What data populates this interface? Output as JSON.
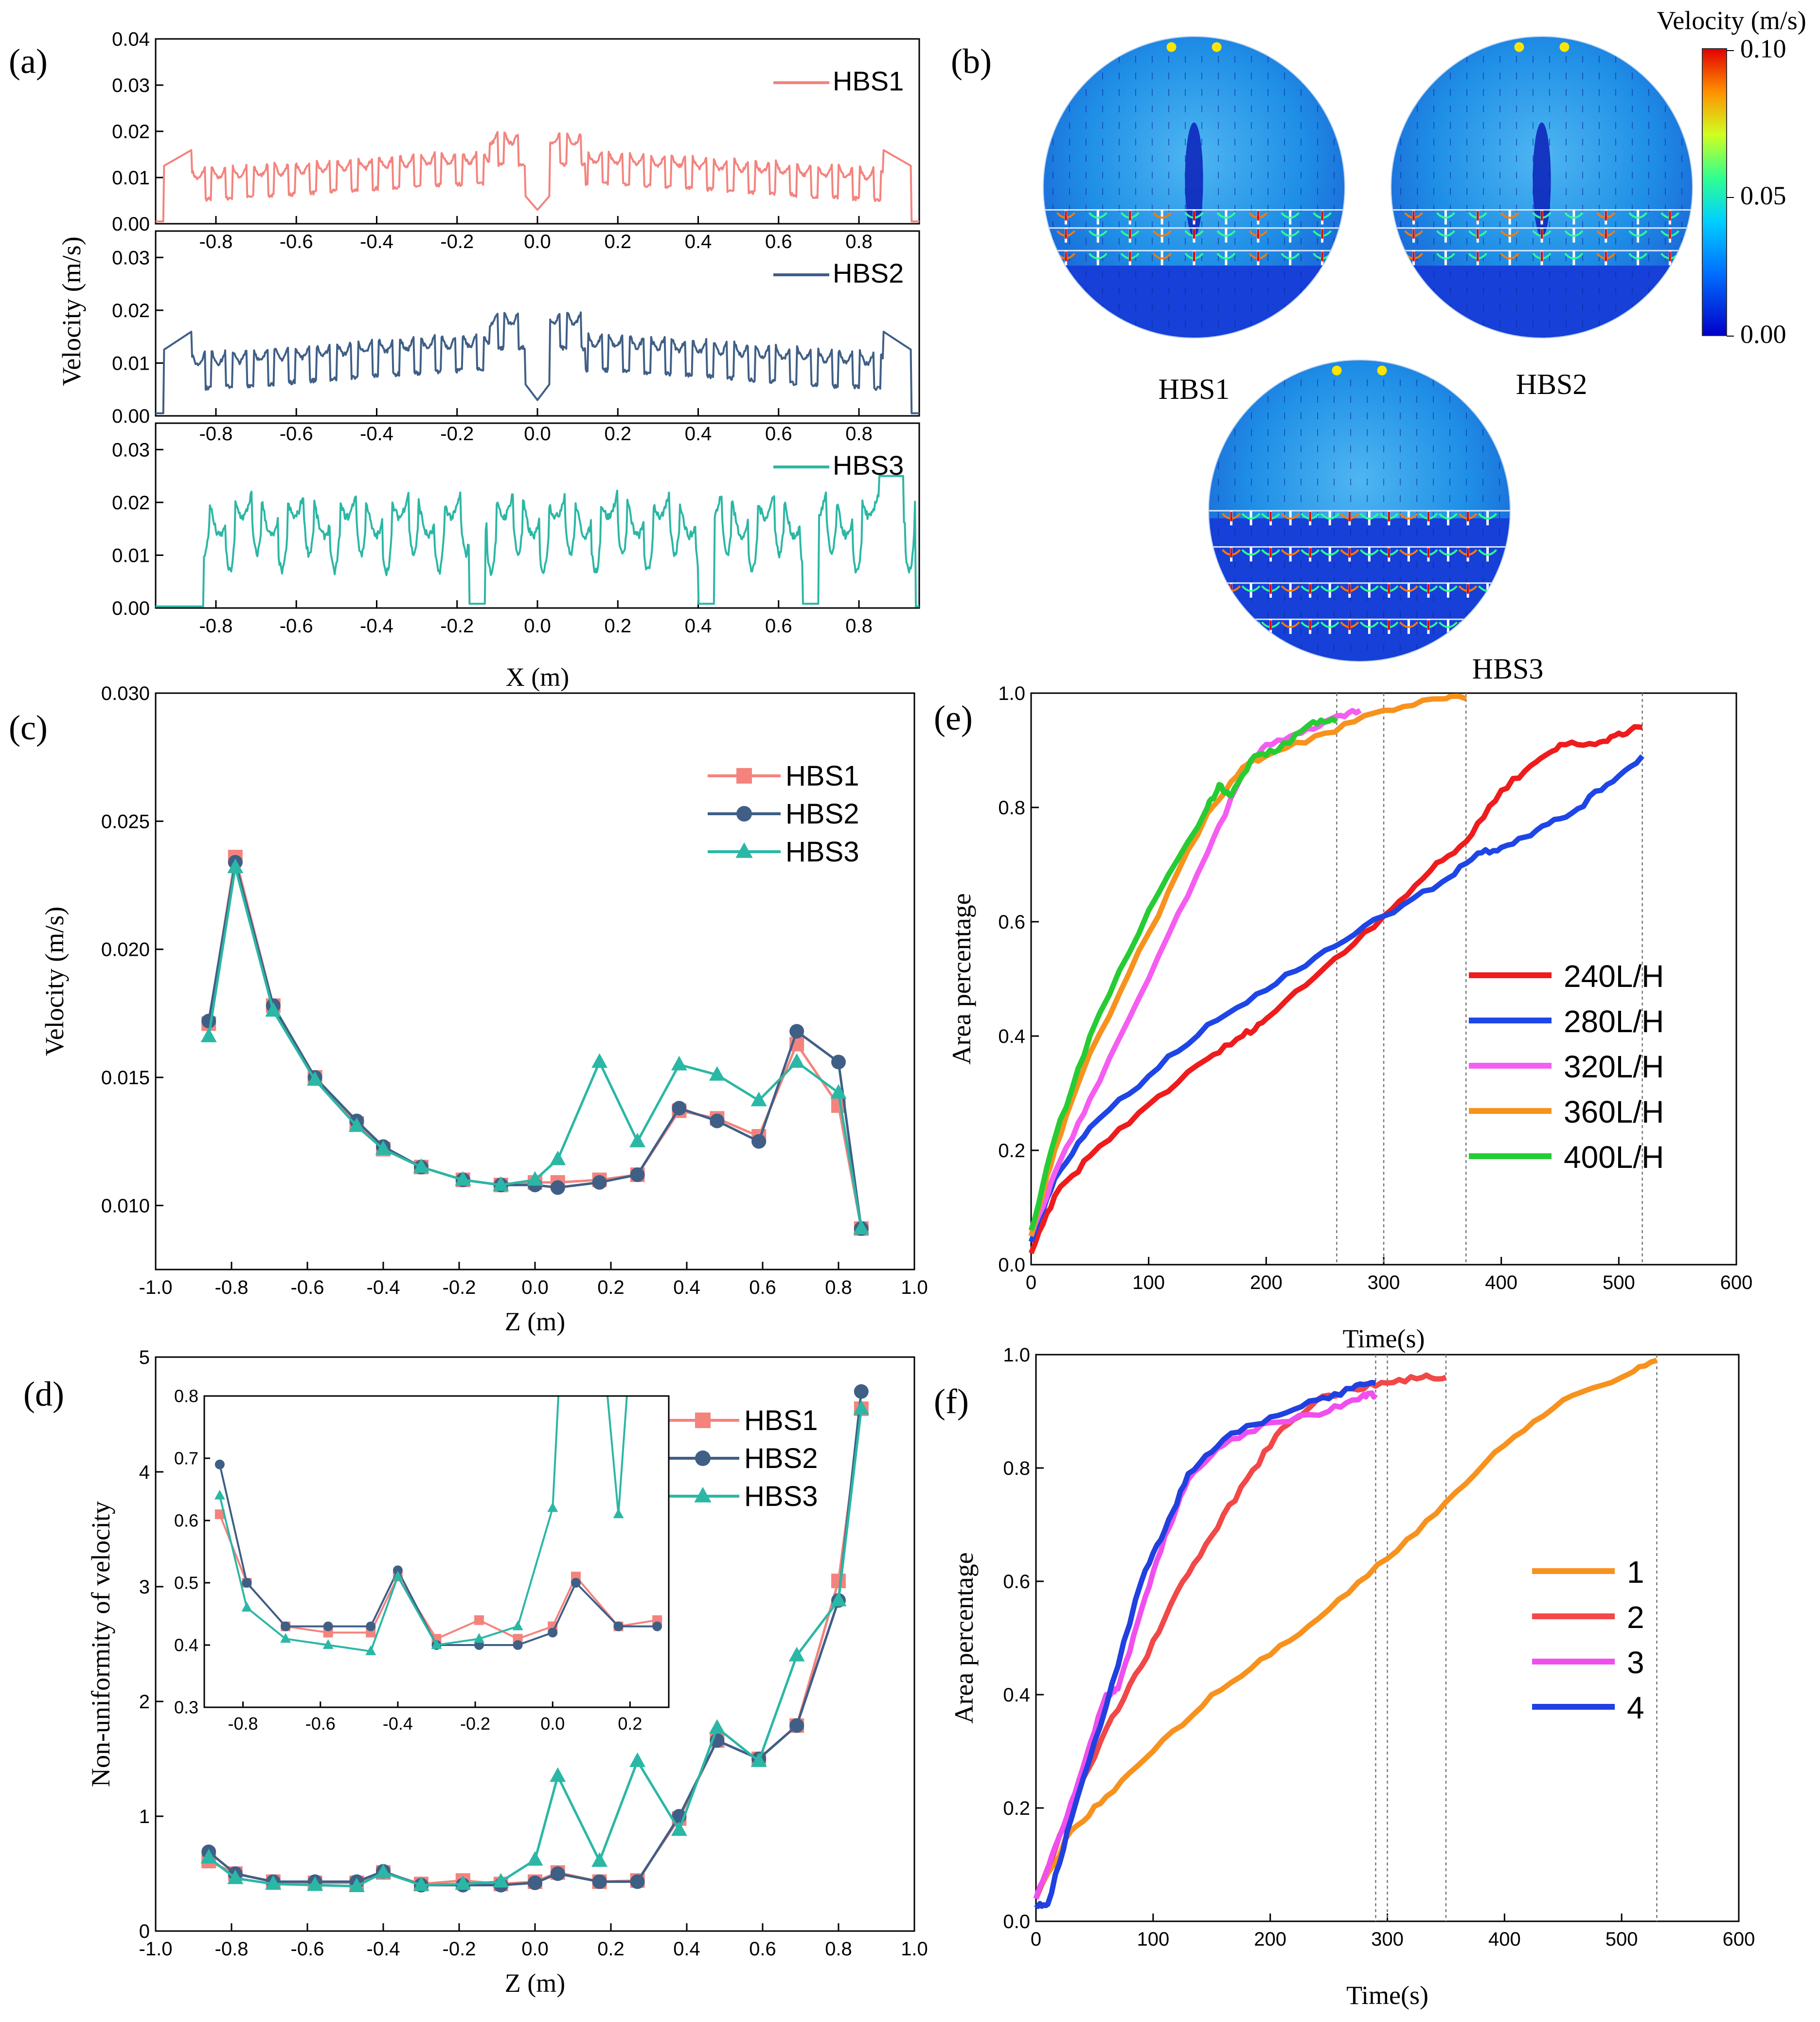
{
  "panel_labels": {
    "a": "(a)",
    "b": "(b)",
    "c": "(c)",
    "d": "(d)",
    "e": "(e)",
    "f": "(f)"
  },
  "chart_data": [
    {
      "id": "a",
      "type": "line",
      "xlabel": "X (m)",
      "ylabel": "Velocity (m/s)",
      "xlim": [
        -0.95,
        0.95
      ],
      "xticks": [
        "-0.8",
        "-0.6",
        "-0.4",
        "-0.2",
        "0.0",
        "0.2",
        "0.4",
        "0.6",
        "0.8"
      ],
      "subplots": [
        {
          "name": "HBS1",
          "color": "#f4837d",
          "ylim": [
            0,
            0.04
          ],
          "yticks": [
            "0.00",
            "0.01",
            "0.02",
            "0.03",
            "0.04"
          ]
        },
        {
          "name": "HBS2",
          "color": "#3f5f86",
          "ylim": [
            0,
            0.035
          ],
          "yticks": [
            "0.00",
            "0.01",
            "0.02",
            "0.03"
          ]
        },
        {
          "name": "HBS3",
          "color": "#2bb7a5",
          "ylim": [
            0,
            0.035
          ],
          "yticks": [
            "0.00",
            "0.01",
            "0.02",
            "0.03"
          ]
        }
      ]
    },
    {
      "id": "b",
      "type": "heatmap",
      "colorbar": {
        "title": "Velocity (m/s)",
        "ticks": [
          "0.10",
          "0.05",
          "0.00"
        ]
      },
      "labels": [
        "HBS1",
        "HBS2",
        "HBS3"
      ]
    },
    {
      "id": "c",
      "type": "line",
      "xlabel": "Z (m)",
      "ylabel": "Velocity (m/s)",
      "xlim": [
        -1.0,
        1.0
      ],
      "ylim": [
        0.0075,
        0.03
      ],
      "xticks": [
        "-1.0",
        "-0.8",
        "-0.6",
        "-0.4",
        "-0.2",
        "0.0",
        "0.2",
        "0.4",
        "0.6",
        "0.8",
        "1.0"
      ],
      "yticks": [
        "0.010",
        "0.015",
        "0.020",
        "0.025",
        "0.030"
      ],
      "x": [
        -0.86,
        -0.79,
        -0.69,
        -0.58,
        -0.47,
        -0.4,
        -0.3,
        -0.19,
        -0.09,
        0.0,
        0.06,
        0.17,
        0.27,
        0.38,
        0.48,
        0.59,
        0.69,
        0.8,
        0.86
      ],
      "series": [
        {
          "name": "HBS1",
          "color": "#f4837d",
          "marker": "square",
          "values": [
            0.0171,
            0.0236,
            0.0178,
            0.015,
            0.0132,
            0.0122,
            0.0115,
            0.011,
            0.0108,
            0.0109,
            0.0109,
            0.011,
            0.0112,
            0.0137,
            0.0134,
            0.0127,
            0.0163,
            0.0139,
            0.0091
          ]
        },
        {
          "name": "HBS2",
          "color": "#3f5f86",
          "marker": "circle",
          "values": [
            0.0172,
            0.0234,
            0.0178,
            0.015,
            0.0133,
            0.0123,
            0.0115,
            0.011,
            0.0108,
            0.0108,
            0.0107,
            0.0109,
            0.0112,
            0.0138,
            0.0133,
            0.0125,
            0.0168,
            0.0156,
            0.0091
          ]
        },
        {
          "name": "HBS3",
          "color": "#2bb7a5",
          "marker": "triangle",
          "values": [
            0.0166,
            0.0232,
            0.0176,
            0.0149,
            0.0131,
            0.0122,
            0.0115,
            0.011,
            0.0108,
            0.011,
            0.0118,
            0.0156,
            0.0125,
            0.0155,
            0.0151,
            0.0141,
            0.0156,
            0.0144,
            0.0091
          ]
        }
      ]
    },
    {
      "id": "d",
      "type": "line",
      "xlabel": "Z (m)",
      "ylabel": "Non-uniformity of velocity",
      "xlim": [
        -1.0,
        1.0
      ],
      "ylim": [
        0,
        5
      ],
      "xticks": [
        "-1.0",
        "-0.8",
        "-0.6",
        "-0.4",
        "-0.2",
        "0.0",
        "0.2",
        "0.4",
        "0.6",
        "0.8",
        "1.0"
      ],
      "yticks": [
        "0",
        "1",
        "2",
        "3",
        "4",
        "5"
      ],
      "x": [
        -0.86,
        -0.79,
        -0.69,
        -0.58,
        -0.47,
        -0.4,
        -0.3,
        -0.19,
        -0.09,
        0.0,
        0.06,
        0.17,
        0.27,
        0.38,
        0.48,
        0.59,
        0.69,
        0.8,
        0.86
      ],
      "series": [
        {
          "name": "HBS1",
          "color": "#f4837d",
          "marker": "square",
          "values": [
            0.61,
            0.5,
            0.43,
            0.42,
            0.42,
            0.51,
            0.41,
            0.44,
            0.41,
            0.43,
            0.51,
            0.43,
            0.44,
            0.98,
            1.66,
            1.5,
            1.79,
            3.05,
            4.55
          ]
        },
        {
          "name": "HBS2",
          "color": "#3f5f86",
          "marker": "circle",
          "values": [
            0.69,
            0.5,
            0.43,
            0.43,
            0.43,
            0.52,
            0.4,
            0.4,
            0.4,
            0.42,
            0.5,
            0.43,
            0.43,
            1.0,
            1.66,
            1.5,
            1.79,
            2.88,
            4.7
          ]
        },
        {
          "name": "HBS3",
          "color": "#2bb7a5",
          "marker": "triangle",
          "values": [
            0.64,
            0.46,
            0.41,
            0.4,
            0.39,
            0.51,
            0.4,
            0.41,
            0.43,
            0.62,
            1.35,
            0.61,
            1.48,
            0.88,
            1.77,
            1.48,
            2.4,
            2.88,
            4.55
          ]
        }
      ],
      "inset": {
        "xlim": [
          -0.9,
          0.3
        ],
        "ylim": [
          0.3,
          0.8
        ],
        "xticks": [
          "-0.8",
          "-0.6",
          "-0.4",
          "-0.2",
          "0.0",
          "0.2"
        ],
        "yticks": [
          "0.3",
          "0.4",
          "0.5",
          "0.6",
          "0.7",
          "0.8"
        ]
      }
    },
    {
      "id": "e",
      "type": "line",
      "xlabel": "Time(s)",
      "ylabel": "Area percentage",
      "xlim": [
        0,
        600
      ],
      "ylim": [
        0,
        1.0
      ],
      "xticks": [
        "0",
        "100",
        "200",
        "300",
        "400",
        "500",
        "600"
      ],
      "yticks": [
        "0.0",
        "0.2",
        "0.4",
        "0.6",
        "0.8",
        "1.0"
      ],
      "vlines": [
        260,
        300,
        370,
        520
      ],
      "series": [
        {
          "name": "240L/H",
          "color": "#ee1c1c",
          "x": [
            0,
            20,
            50,
            100,
            150,
            180,
            200,
            250,
            300,
            340,
            370,
            400,
            430,
            450,
            480,
            500,
            520
          ],
          "values": [
            0.02,
            0.12,
            0.19,
            0.28,
            0.36,
            0.4,
            0.43,
            0.52,
            0.61,
            0.69,
            0.74,
            0.83,
            0.88,
            0.91,
            0.91,
            0.93,
            0.94
          ]
        },
        {
          "name": "280L/H",
          "color": "#1e46e6",
          "x": [
            0,
            20,
            50,
            100,
            150,
            200,
            250,
            300,
            350,
            380,
            400,
            430,
            460,
            490,
            520
          ],
          "values": [
            0.04,
            0.15,
            0.24,
            0.33,
            0.42,
            0.48,
            0.55,
            0.61,
            0.67,
            0.72,
            0.73,
            0.76,
            0.79,
            0.84,
            0.89
          ]
        },
        {
          "name": "320L/H",
          "color": "#f55df0",
          "x": [
            0,
            20,
            50,
            100,
            150,
            180,
            200,
            230,
            260,
            280
          ],
          "values": [
            0.05,
            0.16,
            0.29,
            0.5,
            0.72,
            0.86,
            0.91,
            0.93,
            0.96,
            0.97
          ]
        },
        {
          "name": "360L/H",
          "color": "#f7921e",
          "x": [
            0,
            20,
            50,
            100,
            150,
            180,
            200,
            250,
            300,
            350,
            370
          ],
          "values": [
            0.05,
            0.2,
            0.37,
            0.58,
            0.79,
            0.87,
            0.89,
            0.93,
            0.97,
            0.99,
            0.99
          ]
        },
        {
          "name": "400L/H",
          "color": "#26cc33",
          "x": [
            0,
            20,
            50,
            100,
            150,
            160,
            170,
            190,
            210,
            240,
            260
          ],
          "values": [
            0.06,
            0.22,
            0.4,
            0.62,
            0.8,
            0.84,
            0.82,
            0.89,
            0.9,
            0.95,
            0.95
          ]
        }
      ]
    },
    {
      "id": "f",
      "type": "line",
      "xlabel": "Time(s)",
      "ylabel": "Area percentage",
      "xlim": [
        0,
        600
      ],
      "ylim": [
        0,
        1.0
      ],
      "xticks": [
        "0",
        "100",
        "200",
        "300",
        "400",
        "500",
        "600"
      ],
      "yticks": [
        "0.0",
        "0.2",
        "0.4",
        "0.6",
        "0.8",
        "1.0"
      ],
      "vlines": [
        290,
        300,
        350,
        530
      ],
      "series": [
        {
          "name": "1",
          "color": "#f7921e",
          "x": [
            0,
            30,
            60,
            100,
            150,
            200,
            250,
            300,
            350,
            400,
            450,
            500,
            530
          ],
          "values": [
            0.04,
            0.16,
            0.22,
            0.3,
            0.4,
            0.47,
            0.55,
            0.64,
            0.74,
            0.84,
            0.92,
            0.96,
            0.99
          ]
        },
        {
          "name": "2",
          "color": "#f24848",
          "x": [
            0,
            30,
            60,
            90,
            120,
            150,
            180,
            210,
            240,
            270,
            300,
            330,
            350
          ],
          "values": [
            0.04,
            0.2,
            0.34,
            0.45,
            0.58,
            0.68,
            0.78,
            0.87,
            0.92,
            0.94,
            0.95,
            0.96,
            0.96
          ]
        },
        {
          "name": "3",
          "color": "#f04fee",
          "x": [
            0,
            20,
            40,
            60,
            70,
            90,
            110,
            130,
            160,
            200,
            250,
            280,
            290
          ],
          "values": [
            0.04,
            0.15,
            0.27,
            0.4,
            0.41,
            0.55,
            0.68,
            0.78,
            0.84,
            0.88,
            0.9,
            0.93,
            0.93
          ]
        },
        {
          "name": "4",
          "color": "#2140e0",
          "x": [
            0,
            10,
            30,
            60,
            90,
            110,
            130,
            160,
            200,
            240,
            270,
            290
          ],
          "values": [
            0.03,
            0.03,
            0.18,
            0.38,
            0.6,
            0.69,
            0.79,
            0.85,
            0.89,
            0.92,
            0.94,
            0.95
          ]
        }
      ]
    }
  ]
}
